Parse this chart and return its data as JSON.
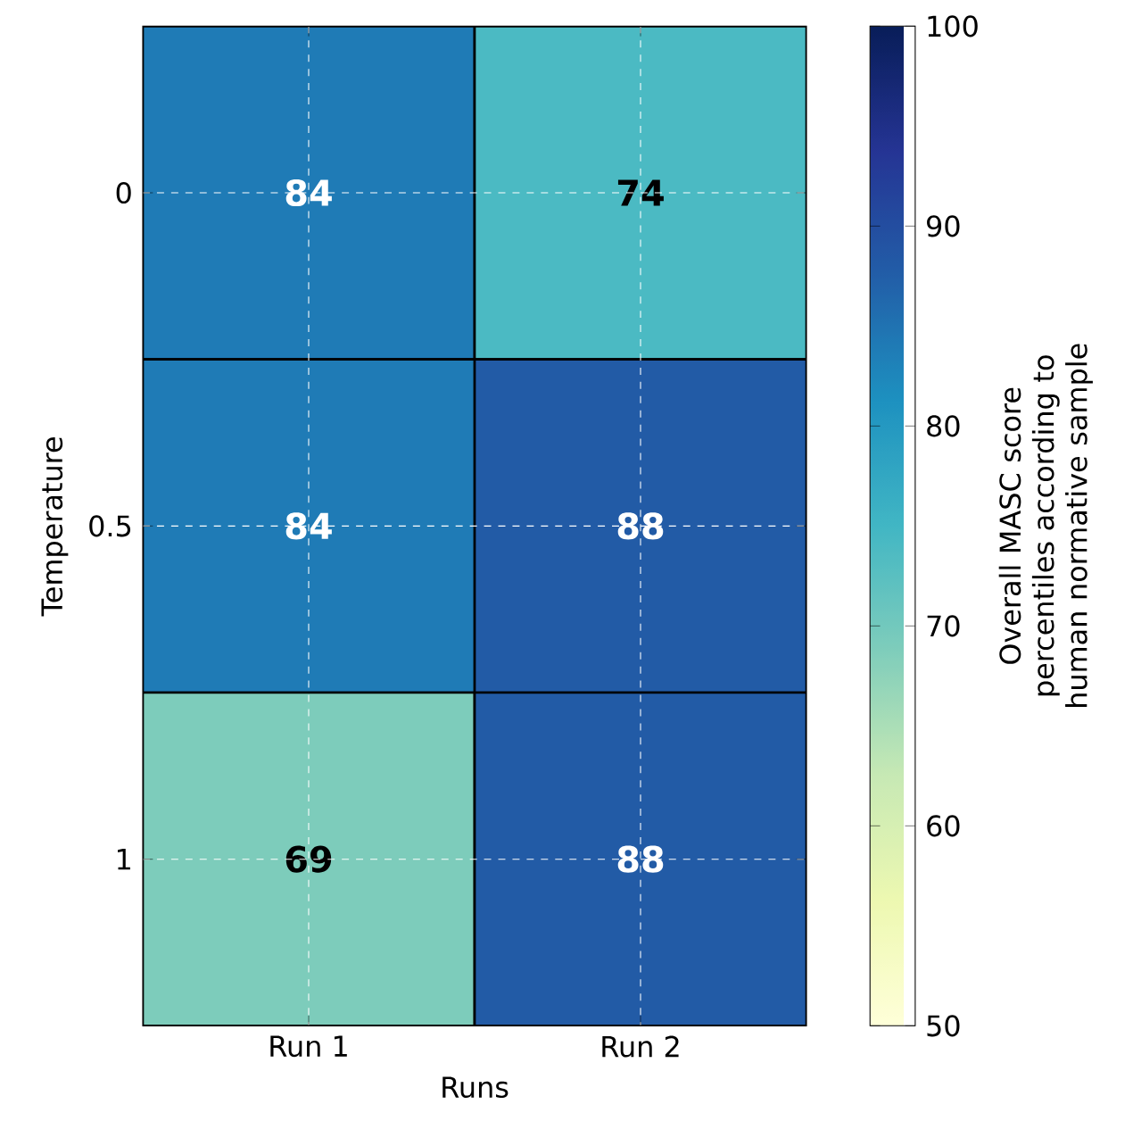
{
  "chart_data": {
    "type": "heatmap",
    "xlabel": "Runs",
    "ylabel": "Temperature",
    "clabel": "Overall MASC score percentiles according to human normative sample",
    "categories": [
      "Run 1",
      "Run 2"
    ],
    "y_categories": [
      "0",
      "0.5",
      "1"
    ],
    "cells": [
      [
        84,
        74
      ],
      [
        84,
        88
      ],
      [
        69,
        88
      ]
    ],
    "clim": [
      50,
      100
    ],
    "cticks": [
      50,
      60,
      70,
      80,
      90,
      100
    ],
    "data_labels": true,
    "grid": true
  }
}
